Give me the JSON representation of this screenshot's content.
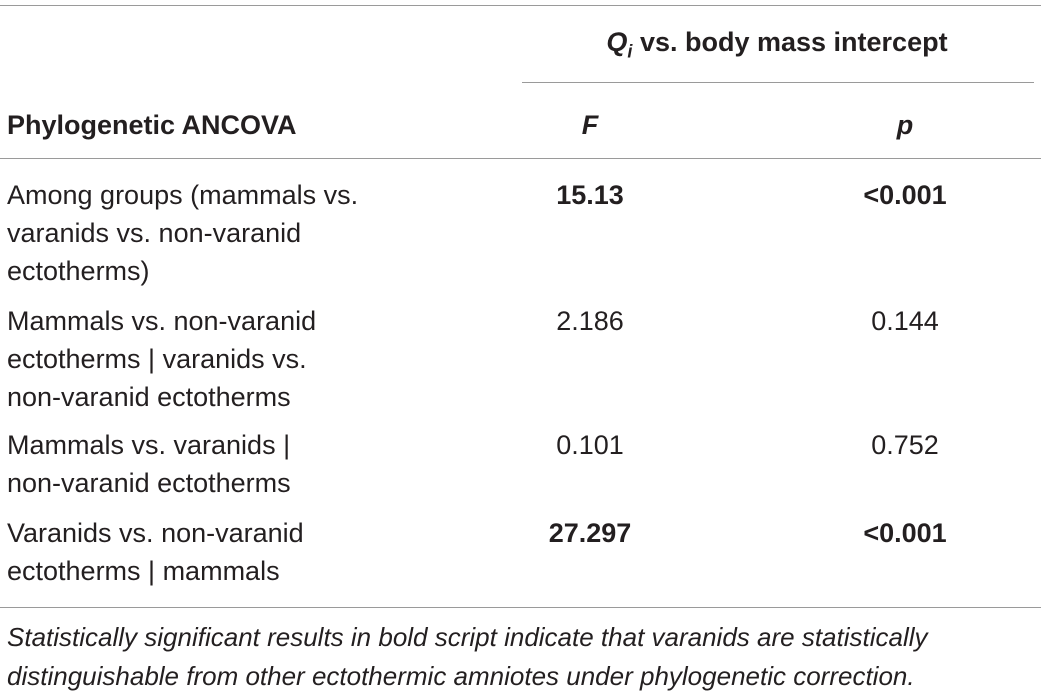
{
  "header": {
    "group": {
      "symbol": "Q",
      "subscript": "i",
      "text": "vs. body mass intercept"
    },
    "columns": [
      "Phylogenetic ANCOVA",
      "F",
      "p"
    ]
  },
  "table": {
    "rows": [
      {
        "label": [
          "Among groups (mammals vs.",
          "varanids vs. non-varanid",
          "ectotherms)"
        ],
        "F": "15.13",
        "p": "<0.001",
        "bold": true
      },
      {
        "label": [
          "Mammals vs. non-varanid",
          "ectotherms | varanids vs.",
          "non-varanid ectotherms"
        ],
        "F": "2.186",
        "p": "0.144",
        "bold": false
      },
      {
        "label": [
          "Mammals vs. varanids |",
          "non-varanid ectotherms"
        ],
        "F": "0.101",
        "p": "0.752",
        "bold": false
      },
      {
        "label": [
          "Varanids vs. non-varanid",
          "ectotherms | mammals"
        ],
        "F": "27.297",
        "p": "<0.001",
        "bold": true
      }
    ]
  },
  "footnote": [
    "Statistically significant results in bold script indicate that varanids are statistically",
    "distinguishable from other ectothermic amniotes under phylogenetic correction."
  ]
}
